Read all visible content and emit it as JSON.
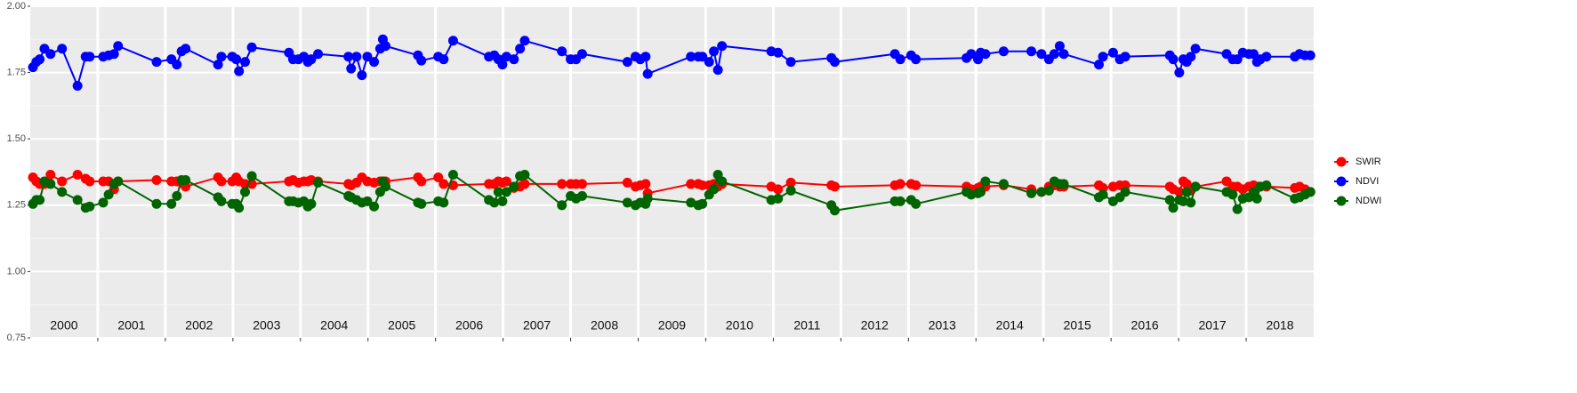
{
  "chart_data": {
    "type": "line",
    "x": [
      2000.04,
      2000.09,
      2000.14,
      2000.21,
      2000.3,
      2000.47,
      2000.7,
      2000.82,
      2000.88,
      2001.08,
      2001.16,
      2001.24,
      2001.3,
      2001.87,
      2002.09,
      2002.17,
      2002.24,
      2002.3,
      2002.78,
      2002.83,
      2002.99,
      2003.05,
      2003.09,
      2003.18,
      2003.28,
      2003.83,
      2003.89,
      2003.97,
      2004.05,
      2004.11,
      2004.16,
      2004.26,
      2004.71,
      2004.75,
      2004.83,
      2004.91,
      2004.99,
      2005.09,
      2005.18,
      2005.22,
      2005.26,
      2005.74,
      2005.79,
      2006.04,
      2006.12,
      2006.26,
      2006.79,
      2006.87,
      2006.93,
      2006.99,
      2007.05,
      2007.16,
      2007.25,
      2007.32,
      2007.87,
      2008.0,
      2008.08,
      2008.17,
      2008.84,
      2008.96,
      2009.03,
      2009.11,
      2009.14,
      2009.78,
      2009.89,
      2009.95,
      2010.05,
      2010.12,
      2010.18,
      2010.24,
      2010.97,
      2011.07,
      2011.26,
      2011.86,
      2011.91,
      2012.8,
      2012.88,
      2013.04,
      2013.11,
      2013.86,
      2013.93,
      2014.03,
      2014.07,
      2014.14,
      2014.41,
      2014.82,
      2014.97,
      2015.08,
      2015.16,
      2015.24,
      2015.3,
      2015.82,
      2015.88,
      2016.03,
      2016.13,
      2016.21,
      2016.87,
      2016.92,
      2017.01,
      2017.07,
      2017.12,
      2017.18,
      2017.25,
      2017.71,
      2017.8,
      2017.87,
      2017.95,
      2018.04,
      2018.11,
      2018.16,
      2018.21,
      2018.3,
      2018.72,
      2018.79,
      2018.87,
      2018.95
    ],
    "series": [
      {
        "name": "SWIR",
        "color": "#ff0000",
        "values": [
          1.355,
          1.34,
          1.33,
          1.33,
          1.365,
          1.34,
          1.365,
          1.35,
          1.34,
          1.34,
          1.34,
          1.31,
          1.34,
          1.345,
          1.34,
          1.34,
          1.335,
          1.32,
          1.355,
          1.34,
          1.34,
          1.355,
          1.34,
          1.33,
          1.33,
          1.34,
          1.345,
          1.335,
          1.34,
          1.34,
          1.345,
          1.34,
          1.33,
          1.325,
          1.335,
          1.355,
          1.34,
          1.335,
          1.34,
          1.34,
          1.34,
          1.355,
          1.34,
          1.355,
          1.33,
          1.325,
          1.33,
          1.33,
          1.34,
          1.335,
          1.34,
          1.315,
          1.32,
          1.33,
          1.33,
          1.33,
          1.33,
          1.33,
          1.335,
          1.32,
          1.325,
          1.33,
          1.295,
          1.33,
          1.33,
          1.325,
          1.325,
          1.33,
          1.32,
          1.33,
          1.32,
          1.31,
          1.335,
          1.325,
          1.32,
          1.325,
          1.33,
          1.33,
          1.325,
          1.32,
          1.31,
          1.315,
          1.32,
          1.32,
          1.325,
          1.31,
          1.3,
          1.32,
          1.325,
          1.32,
          1.32,
          1.325,
          1.315,
          1.32,
          1.325,
          1.325,
          1.32,
          1.31,
          1.3,
          1.34,
          1.33,
          1.305,
          1.32,
          1.34,
          1.32,
          1.32,
          1.31,
          1.32,
          1.325,
          1.32,
          1.32,
          1.32,
          1.315,
          1.32,
          1.31,
          1.3
        ]
      },
      {
        "name": "NDVI",
        "color": "#0000ff",
        "values": [
          1.77,
          1.79,
          1.8,
          1.84,
          1.82,
          1.84,
          1.7,
          1.81,
          1.81,
          1.81,
          1.815,
          1.82,
          1.85,
          1.79,
          1.8,
          1.78,
          1.83,
          1.84,
          1.78,
          1.81,
          1.81,
          1.8,
          1.755,
          1.79,
          1.845,
          1.825,
          1.8,
          1.8,
          1.81,
          1.79,
          1.8,
          1.82,
          1.81,
          1.765,
          1.81,
          1.74,
          1.81,
          1.79,
          1.84,
          1.875,
          1.85,
          1.815,
          1.795,
          1.81,
          1.8,
          1.87,
          1.81,
          1.815,
          1.8,
          1.78,
          1.81,
          1.8,
          1.84,
          1.87,
          1.83,
          1.8,
          1.8,
          1.82,
          1.79,
          1.81,
          1.8,
          1.81,
          1.745,
          1.81,
          1.81,
          1.81,
          1.79,
          1.83,
          1.76,
          1.85,
          1.83,
          1.825,
          1.79,
          1.805,
          1.79,
          1.82,
          1.8,
          1.815,
          1.8,
          1.805,
          1.82,
          1.8,
          1.825,
          1.82,
          1.83,
          1.83,
          1.82,
          1.8,
          1.82,
          1.85,
          1.82,
          1.78,
          1.81,
          1.825,
          1.8,
          1.81,
          1.815,
          1.8,
          1.75,
          1.8,
          1.79,
          1.81,
          1.84,
          1.82,
          1.8,
          1.8,
          1.825,
          1.82,
          1.82,
          1.79,
          1.8,
          1.81,
          1.81,
          1.82,
          1.815,
          1.815
        ]
      },
      {
        "name": "NDWI",
        "color": "#006400",
        "values": [
          1.255,
          1.27,
          1.27,
          1.34,
          1.33,
          1.3,
          1.27,
          1.24,
          1.245,
          1.26,
          1.29,
          1.33,
          1.34,
          1.255,
          1.255,
          1.285,
          1.345,
          1.345,
          1.28,
          1.265,
          1.255,
          1.255,
          1.24,
          1.3,
          1.36,
          1.265,
          1.265,
          1.26,
          1.265,
          1.245,
          1.255,
          1.335,
          1.285,
          1.28,
          1.27,
          1.26,
          1.265,
          1.245,
          1.3,
          1.34,
          1.32,
          1.26,
          1.255,
          1.265,
          1.26,
          1.365,
          1.27,
          1.26,
          1.3,
          1.265,
          1.3,
          1.32,
          1.36,
          1.365,
          1.25,
          1.285,
          1.275,
          1.285,
          1.26,
          1.25,
          1.26,
          1.255,
          1.275,
          1.26,
          1.25,
          1.255,
          1.29,
          1.31,
          1.365,
          1.34,
          1.27,
          1.275,
          1.305,
          1.25,
          1.23,
          1.265,
          1.265,
          1.27,
          1.255,
          1.3,
          1.29,
          1.295,
          1.3,
          1.34,
          1.33,
          1.295,
          1.3,
          1.305,
          1.34,
          1.33,
          1.33,
          1.28,
          1.29,
          1.265,
          1.28,
          1.3,
          1.27,
          1.24,
          1.27,
          1.265,
          1.3,
          1.26,
          1.32,
          1.3,
          1.29,
          1.235,
          1.275,
          1.28,
          1.3,
          1.275,
          1.32,
          1.325,
          1.275,
          1.28,
          1.29,
          1.3
        ]
      }
    ],
    "xlim": [
      2000,
      2019
    ],
    "xticks": [
      {
        "value": 2000.5,
        "label": "2000"
      },
      {
        "value": 2001.5,
        "label": "2001"
      },
      {
        "value": 2002.5,
        "label": "2002"
      },
      {
        "value": 2003.5,
        "label": "2003"
      },
      {
        "value": 2004.5,
        "label": "2004"
      },
      {
        "value": 2005.5,
        "label": "2005"
      },
      {
        "value": 2006.5,
        "label": "2006"
      },
      {
        "value": 2007.5,
        "label": "2007"
      },
      {
        "value": 2008.5,
        "label": "2008"
      },
      {
        "value": 2009.5,
        "label": "2009"
      },
      {
        "value": 2010.5,
        "label": "2010"
      },
      {
        "value": 2011.5,
        "label": "2011"
      },
      {
        "value": 2012.5,
        "label": "2012"
      },
      {
        "value": 2013.5,
        "label": "2013"
      },
      {
        "value": 2014.5,
        "label": "2014"
      },
      {
        "value": 2015.5,
        "label": "2015"
      },
      {
        "value": 2016.5,
        "label": "2016"
      },
      {
        "value": 2017.5,
        "label": "2017"
      },
      {
        "value": 2018.5,
        "label": "2018"
      }
    ],
    "ylim": [
      0.75,
      2.0
    ],
    "yticks": [
      {
        "value": 0.75,
        "label": "0.75"
      },
      {
        "value": 1.0,
        "label": "1.00"
      },
      {
        "value": 1.25,
        "label": "1.25"
      },
      {
        "value": 1.5,
        "label": "1.50"
      },
      {
        "value": 1.75,
        "label": "1.75"
      },
      {
        "value": 2.0,
        "label": "2.00"
      }
    ],
    "grid": true,
    "legend": "right"
  }
}
